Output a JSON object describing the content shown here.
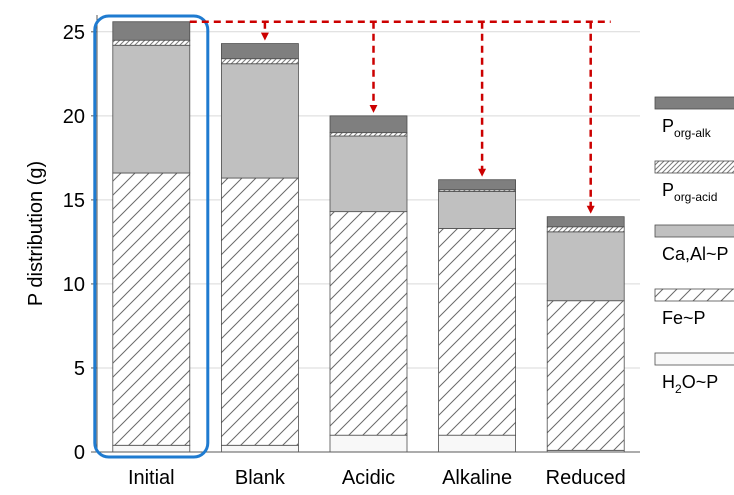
{
  "chart_data": {
    "type": "bar",
    "stacked": true,
    "categories": [
      "Initial",
      "Blank",
      "Acidic",
      "Alkaline",
      "Reduced"
    ],
    "ylabel": "P distribution (g)",
    "ylim": [
      0,
      26
    ],
    "yticks": [
      0,
      5,
      10,
      15,
      20,
      25
    ],
    "grid": true,
    "legend_position": "right",
    "series": [
      {
        "name": "H2O~P",
        "label_main": "H",
        "label_sub": "2",
        "label_rest": "O~P",
        "pattern": "white",
        "values": [
          0.4,
          0.4,
          1.0,
          1.0,
          0.1
        ]
      },
      {
        "name": "Fe~P",
        "label_main": "Fe~P",
        "label_sub": "",
        "label_rest": "",
        "pattern": "hatch",
        "values": [
          16.2,
          15.9,
          13.3,
          12.3,
          8.9
        ]
      },
      {
        "name": "Ca,Al~P",
        "label_main": "Ca,Al~P",
        "label_sub": "",
        "label_rest": "",
        "pattern": "lightgray",
        "values": [
          7.6,
          6.8,
          4.5,
          2.2,
          4.1
        ]
      },
      {
        "name": "Porg-acid",
        "label_main": "P",
        "label_sub": "org-acid",
        "label_rest": "",
        "pattern": "fine-hatch",
        "values": [
          0.3,
          0.3,
          0.2,
          0.1,
          0.3
        ]
      },
      {
        "name": "Porg-alk",
        "label_main": "P",
        "label_sub": "org-alk",
        "label_rest": "",
        "pattern": "darkgray",
        "values": [
          1.1,
          0.9,
          1.0,
          0.6,
          0.6
        ]
      }
    ],
    "reference_level": 25.6,
    "highlight_category": "Initial",
    "colors": {
      "highlight_box": "#1f7bd0",
      "arrow": "#cc0000",
      "light_fill": "#c0c0c0",
      "dark_fill": "#7f7f7f",
      "grid": "#d9d9d9"
    }
  }
}
